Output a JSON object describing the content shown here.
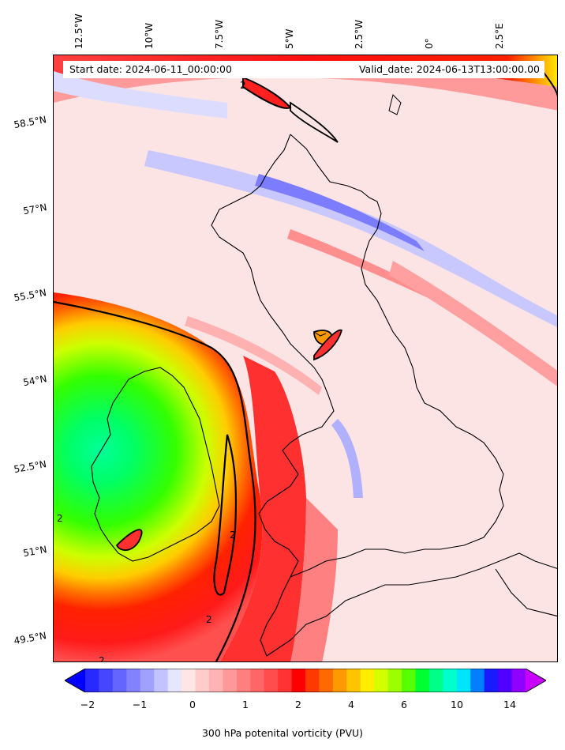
{
  "map": {
    "start_date": "Start date: 2024-06-11_00:00:00",
    "valid_date": "Valid_date: 2024-06-13T13:00:00.00",
    "lon_labels": [
      "12.5°W",
      "10°W",
      "7.5°W",
      "5°W",
      "2.5°W",
      "0°",
      "2.5°E"
    ],
    "lat_labels": [
      "58.5°N",
      "57°N",
      "55.5°N",
      "54°N",
      "52.5°N",
      "51°N",
      "49.5°N"
    ],
    "contour_label": "2",
    "colorbar": {
      "label": "300 hPa potenital vorticity (PVU)",
      "ticks": [
        "−2",
        "−1",
        "0",
        "1",
        "2",
        "4",
        "6",
        "10",
        "14"
      ],
      "colors": [
        "#0000ff",
        "#2828ff",
        "#4646ff",
        "#6464ff",
        "#8282ff",
        "#a0a0ff",
        "#c3c3ff",
        "#e6e6ff",
        "#ffe6e6",
        "#ffcccc",
        "#ffb3b3",
        "#ff9999",
        "#ff7f7f",
        "#ff6666",
        "#ff4c4c",
        "#ff3333",
        "#ff0000",
        "#ff3a00",
        "#ff6a00",
        "#ff9900",
        "#ffc300",
        "#ffee00",
        "#d4ff00",
        "#9cff00",
        "#55ff00",
        "#00ff33",
        "#00ff88",
        "#00ffcc",
        "#00e5ff",
        "#0080ff",
        "#1a1aff",
        "#5000ff",
        "#9000ff",
        "#c800ff"
      ]
    }
  }
}
